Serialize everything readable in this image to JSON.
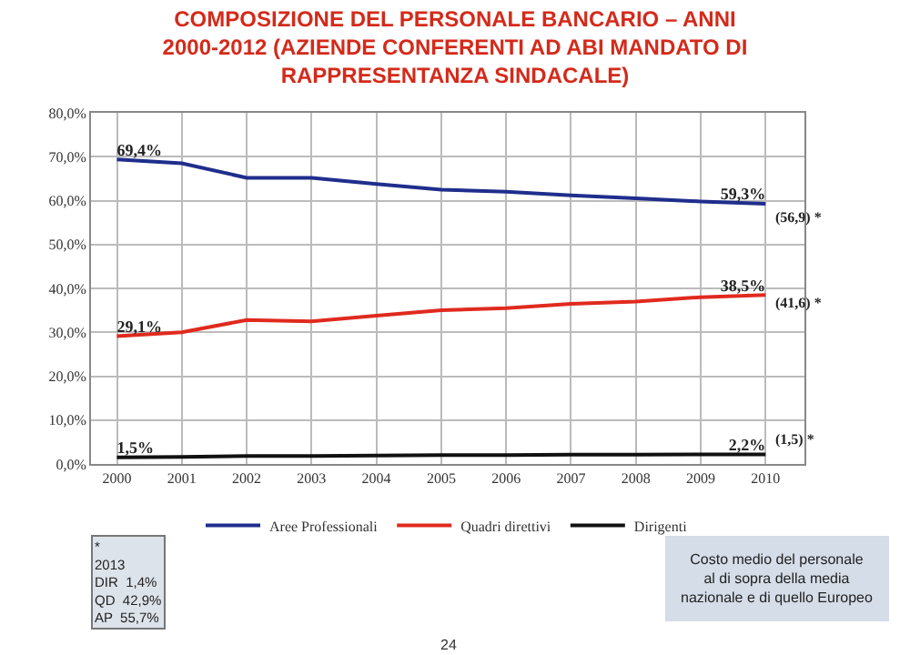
{
  "chart_data": {
    "type": "line",
    "title": "COMPOSIZIONE DEL PERSONALE BANCARIO – ANNI\n2000-2012 (AZIENDE CONFERENTI AD ABI MANDATO DI\nRAPPRESENTANZA SINDACALE)",
    "x": [
      2000,
      2001,
      2002,
      2003,
      2004,
      2005,
      2006,
      2007,
      2008,
      2009,
      2010
    ],
    "xlim": [
      1999.6,
      2010.6
    ],
    "xticks": [
      2000,
      2001,
      2002,
      2003,
      2004,
      2005,
      2006,
      2007,
      2008,
      2009,
      2010
    ],
    "ylim": [
      0,
      80
    ],
    "yticks": [
      {
        "value": 0,
        "label": "0,0%"
      },
      {
        "value": 10,
        "label": "10,0%"
      },
      {
        "value": 20,
        "label": "20,0%"
      },
      {
        "value": 30,
        "label": "30,0%"
      },
      {
        "value": 40,
        "label": "40,0%"
      },
      {
        "value": 50,
        "label": "50,0%"
      },
      {
        "value": 60,
        "label": "60,0%"
      },
      {
        "value": 70,
        "label": "70,0%"
      },
      {
        "value": 80,
        "label": "80,0%"
      }
    ],
    "series": [
      {
        "name": "Aree Professionali",
        "color": "#1f2e8c",
        "values": [
          69.4,
          68.5,
          65.2,
          65.2,
          63.8,
          62.5,
          62.0,
          61.2,
          60.5,
          59.8,
          59.3
        ],
        "value_labels": [
          "69,4%",
          null,
          null,
          null,
          null,
          null,
          null,
          null,
          null,
          null,
          "59,3%"
        ]
      },
      {
        "name": "Quadri direttivi",
        "color": "#e02a1e",
        "values": [
          29.1,
          30.0,
          32.8,
          32.5,
          33.8,
          35.0,
          35.5,
          36.5,
          37.0,
          38.0,
          38.5
        ],
        "value_labels": [
          "29,1%",
          null,
          null,
          null,
          null,
          null,
          null,
          null,
          null,
          null,
          "38,5%"
        ]
      },
      {
        "name": "Dirigenti",
        "color": "#111111",
        "values": [
          1.5,
          1.6,
          1.8,
          1.8,
          1.9,
          2.0,
          2.0,
          2.1,
          2.1,
          2.2,
          2.2
        ],
        "value_labels": [
          "1,5%",
          null,
          null,
          null,
          null,
          null,
          null,
          null,
          null,
          null,
          "2,2%"
        ]
      }
    ],
    "annotations": [
      "(56,9) *",
      "(41,6) *",
      "(1,5) *",
      "*\n2013\nDIR  1,4%\nQD  42,9%\nAP  55,7%",
      "Costo medio del personale\nal di sopra della media\nnazionale e di quello Europeo",
      "24"
    ],
    "grid": true,
    "legend": "bottom",
    "marker": "none",
    "line_style": "solid"
  }
}
